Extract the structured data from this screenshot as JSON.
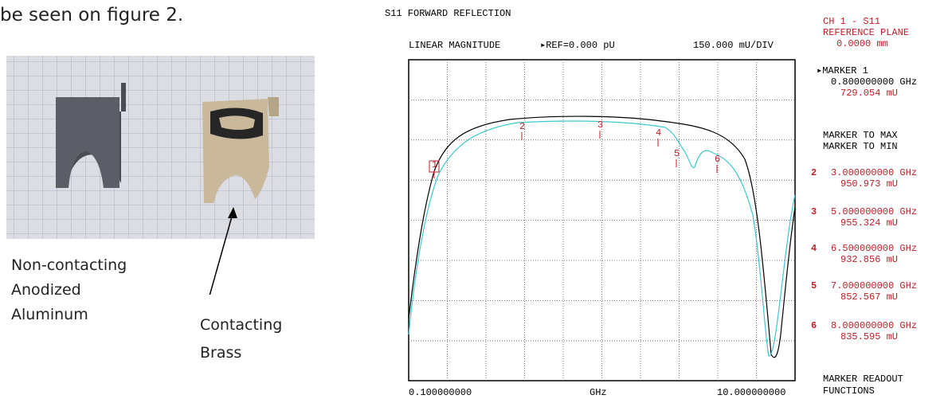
{
  "text": {
    "intro": "be seen on figure 2."
  },
  "figure": {
    "captions": {
      "left": [
        "Non-contacting",
        "Anodized",
        "Aluminum"
      ],
      "right": [
        "Contacting",
        "Brass"
      ]
    }
  },
  "analyzer": {
    "title": "S11 FORWARD REFLECTION",
    "format": "LINEAR MAGNITUDE",
    "reference": "▸REF=0.000 pU",
    "scale": "150.000 mU/DIV",
    "start": "0.100000000",
    "unit": "GHz",
    "stop": "10.000000000",
    "channel": [
      "CH 1 - S11",
      "REFERENCE PLANE",
      "0.0000 mm"
    ],
    "active_marker": {
      "label": "▸MARKER 1",
      "freq": "0.800000000 GHz",
      "value": "729.054 mU"
    },
    "functions": [
      "MARKER TO MAX",
      "MARKER TO MIN"
    ],
    "markers": [
      {
        "num": "2",
        "freq": "3.000000000 GHz",
        "value": "950.973 mU"
      },
      {
        "num": "3",
        "freq": "5.000000000 GHz",
        "value": "955.324 mU"
      },
      {
        "num": "4",
        "freq": "6.500000000 GHz",
        "value": "932.856 mU"
      },
      {
        "num": "5",
        "freq": "7.000000000 GHz",
        "value": "852.567 mU"
      },
      {
        "num": "6",
        "freq": "8.000000000 GHz",
        "value": "835.595 mU"
      }
    ],
    "plot_markers": [
      "1",
      "2",
      "3",
      "4",
      "5",
      "6"
    ],
    "footer": [
      "MARKER READOUT",
      "FUNCTIONS"
    ]
  }
}
